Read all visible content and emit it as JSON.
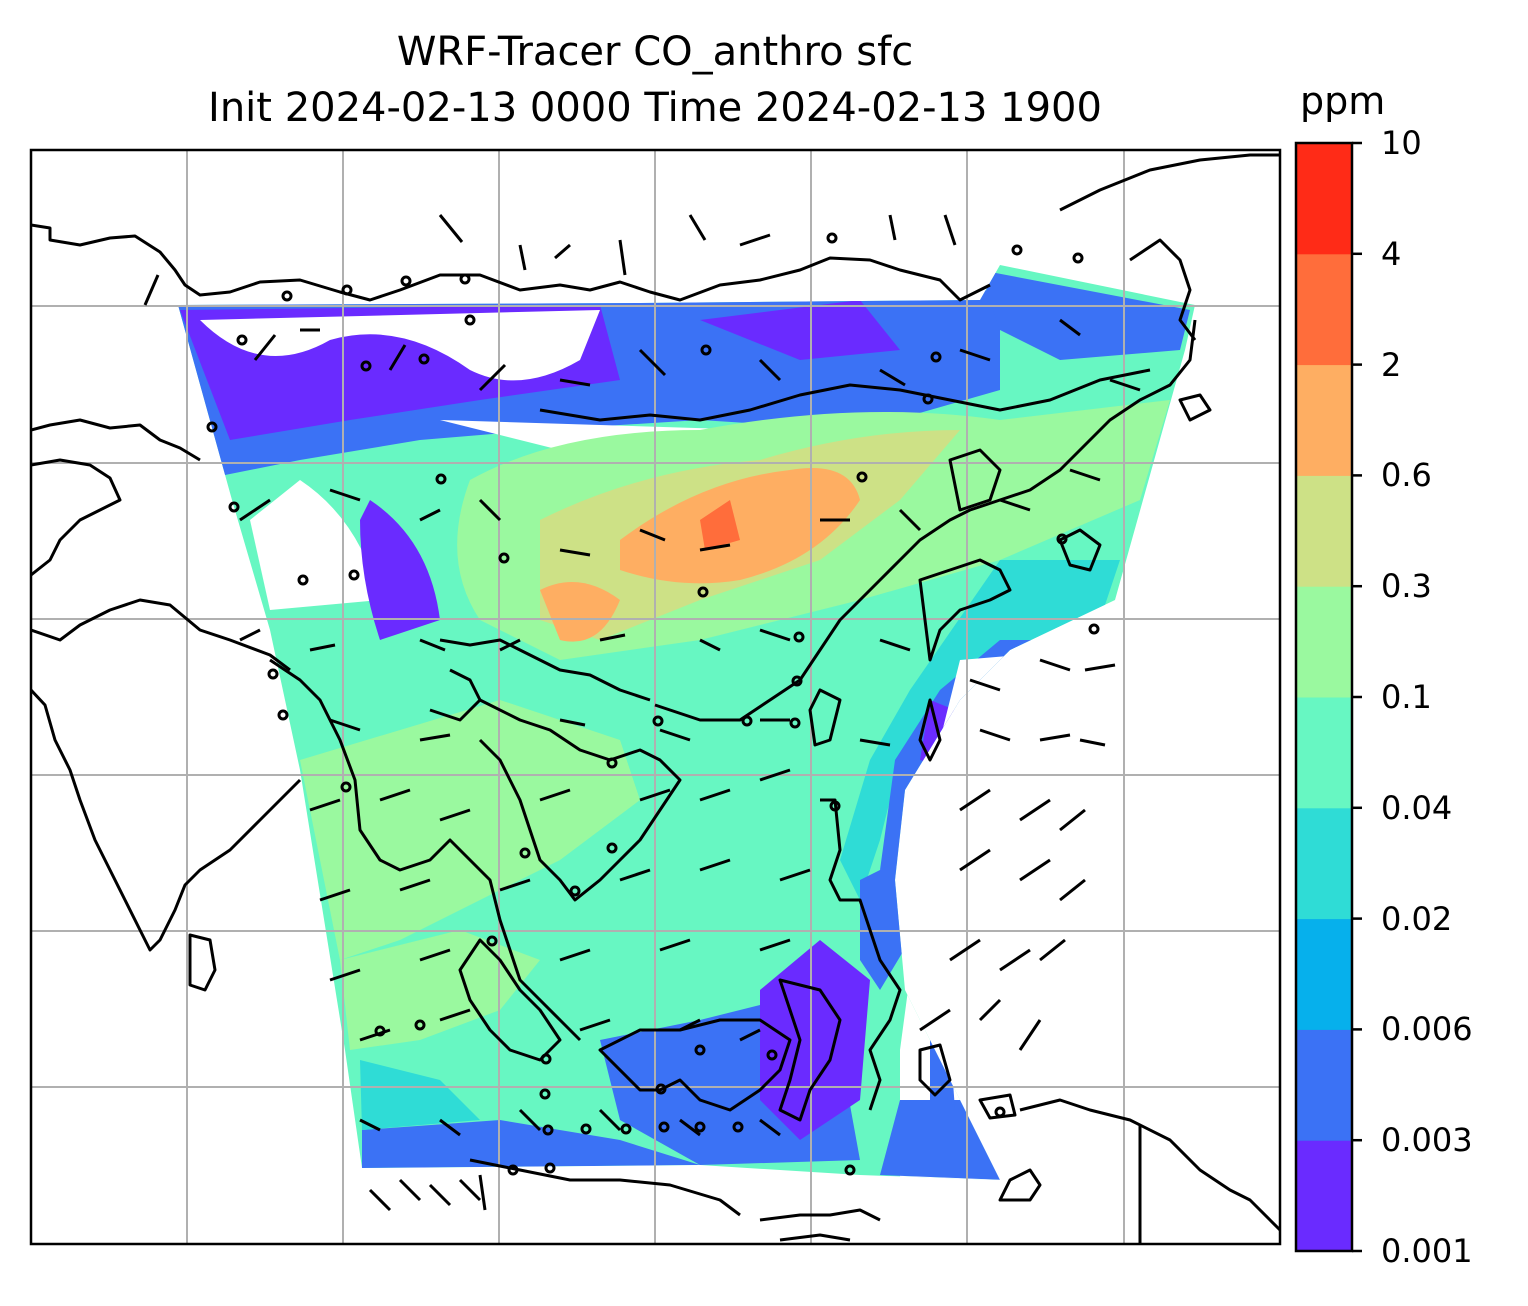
{
  "title": {
    "line1": "WRF-Tracer CO_anthro sfc",
    "line2": "Init 2024-02-13 0000 Time 2024-02-13 1900"
  },
  "colorbar": {
    "unit": "ppm",
    "levels": [
      "0.001",
      "0.003",
      "0.006",
      "0.02",
      "0.04",
      "0.1",
      "0.3",
      "0.6",
      "2",
      "4",
      "10"
    ],
    "colors": [
      "#6a2bff",
      "#3b72f5",
      "#06b0ec",
      "#2fdcd6",
      "#67f7c2",
      "#9af99f",
      "#cde186",
      "#feae62",
      "#ff6d3b",
      "#ff2b17"
    ]
  },
  "map": {
    "variable": "CO_anthro",
    "level": "sfc",
    "features": [
      "coastlines",
      "gridlines",
      "wind-barbs",
      "filled-contours"
    ]
  }
}
